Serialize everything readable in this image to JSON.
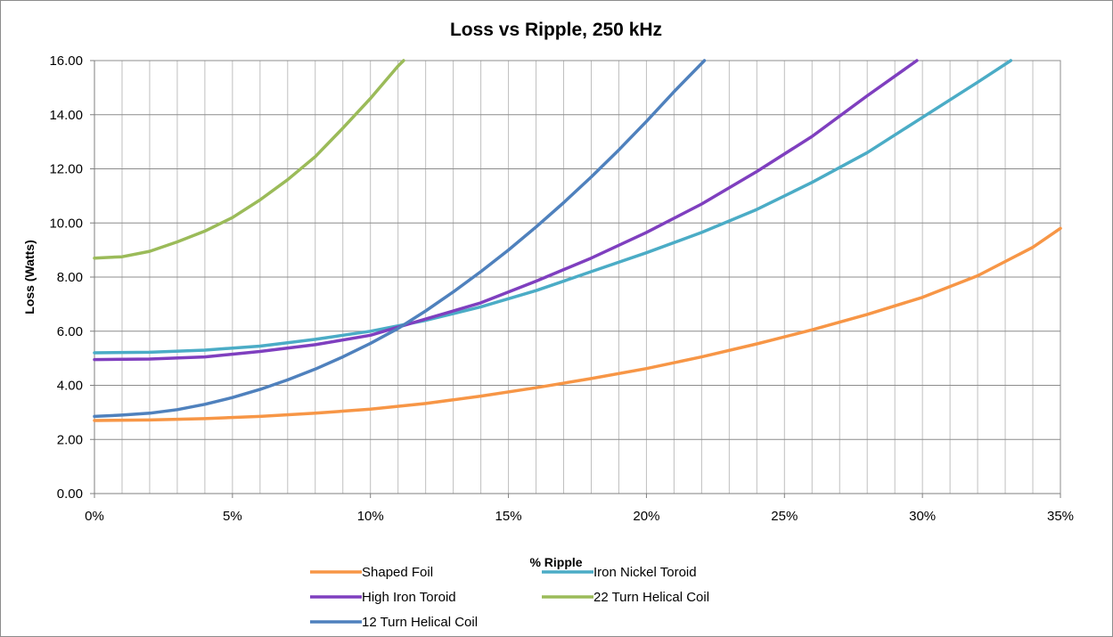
{
  "chart_data": {
    "type": "line",
    "title": "Loss vs Ripple, 250 kHz",
    "xlabel": "% Ripple",
    "ylabel": "Loss (Watts)",
    "xlim": [
      0,
      35
    ],
    "ylim": [
      0,
      16
    ],
    "x_ticks": [
      "0%",
      "5%",
      "10%",
      "15%",
      "20%",
      "25%",
      "30%",
      "35%"
    ],
    "y_ticks": [
      "0.00",
      "2.00",
      "4.00",
      "6.00",
      "8.00",
      "10.00",
      "12.00",
      "14.00",
      "16.00"
    ],
    "grid": true,
    "legend_position": "bottom",
    "series": [
      {
        "name": "Shaped Foil",
        "color": "#f79646",
        "x": [
          0,
          2,
          4,
          6,
          8,
          10,
          12,
          14,
          16,
          18,
          20,
          22,
          24,
          26,
          28,
          30,
          32,
          34,
          35
        ],
        "values": [
          2.7,
          2.72,
          2.77,
          2.85,
          2.97,
          3.12,
          3.33,
          3.6,
          3.91,
          4.25,
          4.62,
          5.05,
          5.53,
          6.05,
          6.62,
          7.25,
          8.05,
          9.1,
          9.8
        ]
      },
      {
        "name": "Iron Nickel Toroid",
        "color": "#4bacc6",
        "x": [
          0,
          2,
          4,
          6,
          8,
          10,
          11,
          12,
          14,
          16,
          18,
          20,
          22,
          24,
          26,
          28,
          30,
          32,
          33.2
        ],
        "values": [
          5.2,
          5.22,
          5.3,
          5.45,
          5.7,
          6.0,
          6.2,
          6.4,
          6.9,
          7.5,
          8.2,
          8.9,
          9.65,
          10.5,
          11.5,
          12.6,
          13.9,
          15.2,
          16.0
        ]
      },
      {
        "name": "High Iron Toroid",
        "color": "#7f3fbf",
        "x": [
          0,
          2,
          4,
          6,
          8,
          10,
          11,
          12,
          14,
          16,
          18,
          20,
          22,
          24,
          26,
          28,
          29.8
        ],
        "values": [
          4.95,
          4.97,
          5.05,
          5.25,
          5.5,
          5.85,
          6.15,
          6.45,
          7.05,
          7.85,
          8.7,
          9.65,
          10.7,
          11.9,
          13.2,
          14.7,
          16.0
        ]
      },
      {
        "name": "22 Turn Helical Coil",
        "color": "#9bbb59",
        "x": [
          0,
          1,
          2,
          3,
          4,
          5,
          6,
          7,
          8,
          9,
          10,
          11,
          11.2
        ],
        "values": [
          8.7,
          8.75,
          8.95,
          9.3,
          9.7,
          10.2,
          10.85,
          11.6,
          12.45,
          13.5,
          14.6,
          15.8,
          16.0
        ]
      },
      {
        "name": "12 Turn Helical Coil",
        "color": "#4f81bd",
        "x": [
          0,
          1,
          2,
          3,
          4,
          5,
          6,
          7,
          8,
          9,
          10,
          11,
          12,
          13,
          14,
          15,
          16,
          17,
          18,
          19,
          20,
          21,
          22.1
        ],
        "values": [
          2.85,
          2.9,
          2.97,
          3.1,
          3.3,
          3.55,
          3.85,
          4.2,
          4.6,
          5.05,
          5.55,
          6.1,
          6.75,
          7.45,
          8.2,
          9.0,
          9.85,
          10.75,
          11.7,
          12.7,
          13.75,
          14.85,
          16.0
        ]
      }
    ]
  }
}
